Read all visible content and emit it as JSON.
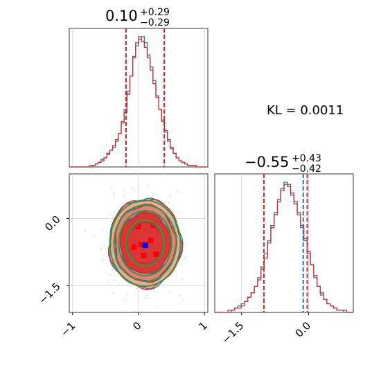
{
  "annotation": {
    "kl_text": "KL = 0.0011"
  },
  "colors": {
    "sample_a": "#1f77b4",
    "sample_b": "#d62728",
    "gaussian": "#2ca02c",
    "grid": "#d9d9d9",
    "truth": "#0000ff"
  },
  "chart_data": [
    {
      "id": "param1_hist",
      "type": "histogram",
      "title": "0.10",
      "title_sup": "+0.29",
      "title_sub": "−0.29",
      "xlim": [
        -1.05,
        1.05
      ],
      "grid": true,
      "series": [
        {
          "values": [
            0,
            0,
            0,
            0,
            0,
            0,
            0,
            1,
            1,
            2,
            3,
            5,
            6,
            8,
            11,
            13,
            17,
            22,
            30,
            38,
            50,
            60,
            72,
            80,
            84,
            86,
            82,
            74,
            66,
            57,
            47,
            38,
            30,
            23,
            17,
            12,
            9,
            6,
            4,
            3,
            2,
            1,
            1,
            1,
            0,
            0,
            0,
            0
          ]
        },
        {
          "values": [
            0,
            0,
            0,
            0,
            0,
            0,
            0,
            0,
            1,
            2,
            3,
            4,
            6,
            9,
            11,
            14,
            18,
            22,
            29,
            36,
            48,
            60,
            73,
            82,
            86,
            83,
            79,
            72,
            64,
            55,
            46,
            38,
            31,
            24,
            18,
            13,
            9,
            6,
            4,
            3,
            2,
            1,
            1,
            1,
            0,
            0,
            0,
            0
          ]
        }
      ],
      "quantile_lines": {
        "a": [
          -0.19,
          0.39
        ],
        "b": [
          -0.19,
          0.39
        ]
      }
    },
    {
      "id": "param1_param2_2d",
      "type": "contour",
      "xlim": [
        -1.05,
        1.05
      ],
      "ylim": [
        -2.1,
        1.0
      ],
      "x_ticks": [
        "−1",
        "0",
        "1"
      ],
      "y_ticks": [
        "0.0",
        "−1.5"
      ],
      "x_tick_values": [
        -1,
        0,
        1
      ],
      "y_tick_values": [
        0.0,
        -1.5
      ],
      "grid": true,
      "center": [
        0.1,
        -0.55
      ],
      "truth_marker": [
        0.1,
        -0.6
      ]
    },
    {
      "id": "param2_hist",
      "type": "histogram",
      "title": "−0.55",
      "title_sup": "+0.43",
      "title_sub": "−0.42",
      "xlim": [
        -2.1,
        1.0
      ],
      "x_ticks": [
        "−1.5",
        "0.0"
      ],
      "x_tick_values": [
        -1.5,
        0.0
      ],
      "grid": true,
      "series": [
        {
          "values": [
            0,
            0,
            0,
            0,
            1,
            1,
            2,
            3,
            4,
            5,
            7,
            9,
            12,
            16,
            21,
            27,
            33,
            40,
            46,
            52,
            57,
            60,
            58,
            54,
            50,
            45,
            39,
            33,
            27,
            22,
            16,
            12,
            8,
            6,
            4,
            3,
            2,
            1,
            1,
            0,
            0,
            0
          ]
        },
        {
          "values": [
            0,
            0,
            0,
            0,
            0,
            1,
            2,
            2,
            3,
            5,
            7,
            9,
            12,
            15,
            20,
            25,
            32,
            39,
            45,
            51,
            56,
            59,
            59,
            55,
            51,
            46,
            40,
            34,
            28,
            22,
            17,
            12,
            9,
            6,
            4,
            3,
            2,
            1,
            1,
            1,
            0,
            0
          ]
        }
      ],
      "quantile_lines": {
        "a": [
          -1.0,
          -0.12
        ],
        "b": [
          -1.0,
          -0.03
        ]
      }
    }
  ]
}
